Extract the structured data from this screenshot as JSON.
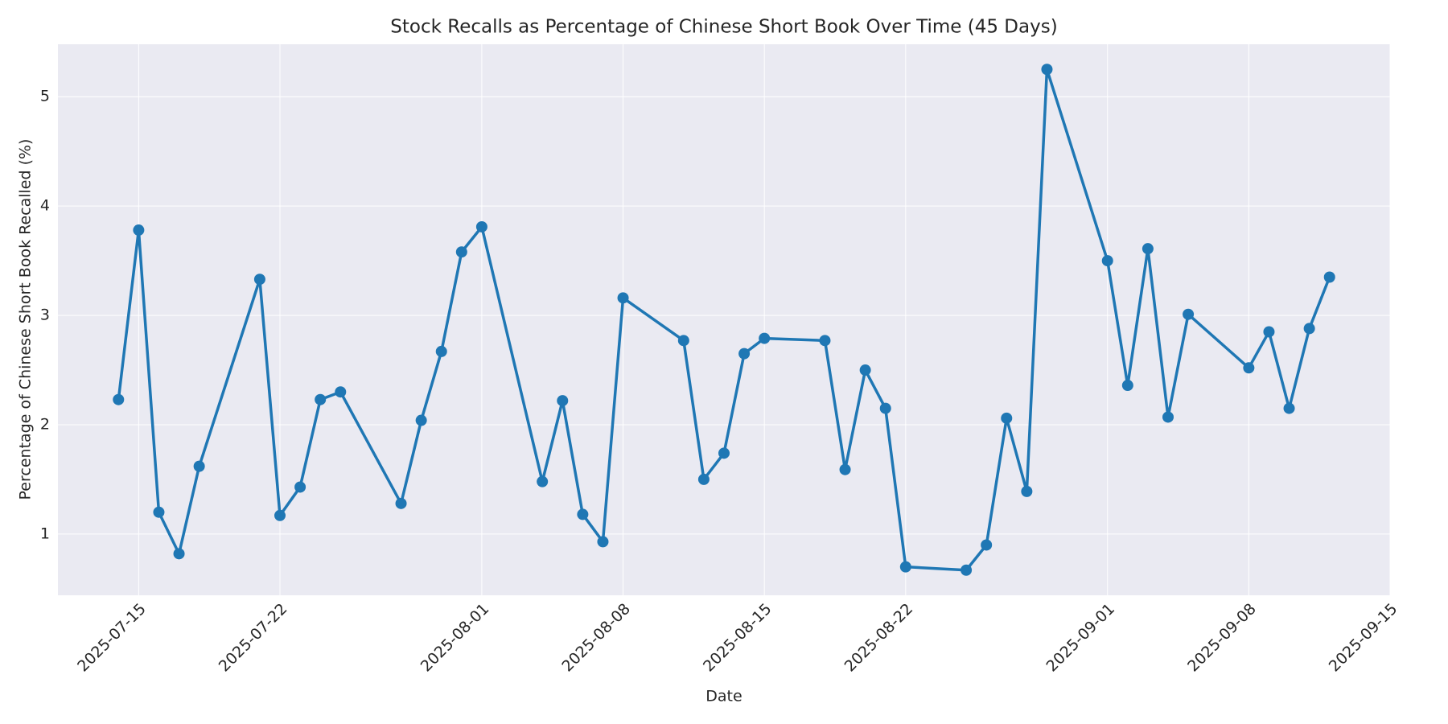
{
  "chart_data": {
    "type": "line",
    "title": "Stock Recalls as Percentage of Chinese Short Book Over Time (45 Days)",
    "x_label": "Date",
    "y_label": "Percentage of Chinese Short Book Recalled (%)",
    "x": [
      "2025-07-14",
      "2025-07-15",
      "2025-07-16",
      "2025-07-17",
      "2025-07-18",
      "2025-07-21",
      "2025-07-22",
      "2025-07-23",
      "2025-07-24",
      "2025-07-25",
      "2025-07-28",
      "2025-07-29",
      "2025-07-30",
      "2025-07-31",
      "2025-08-01",
      "2025-08-04",
      "2025-08-05",
      "2025-08-06",
      "2025-08-07",
      "2025-08-08",
      "2025-08-11",
      "2025-08-12",
      "2025-08-13",
      "2025-08-14",
      "2025-08-15",
      "2025-08-18",
      "2025-08-19",
      "2025-08-20",
      "2025-08-21",
      "2025-08-22",
      "2025-08-25",
      "2025-08-26",
      "2025-08-27",
      "2025-08-28",
      "2025-08-29",
      "2025-09-01",
      "2025-09-02",
      "2025-09-03",
      "2025-09-04",
      "2025-09-05",
      "2025-09-08",
      "2025-09-09",
      "2025-09-10",
      "2025-09-11",
      "2025-09-12"
    ],
    "values": [
      2.23,
      3.78,
      1.2,
      0.82,
      1.62,
      3.33,
      1.17,
      1.43,
      2.23,
      2.3,
      1.28,
      2.04,
      2.67,
      3.58,
      3.81,
      1.48,
      2.22,
      1.18,
      0.93,
      3.16,
      2.77,
      1.5,
      1.74,
      2.65,
      2.79,
      2.77,
      1.59,
      2.5,
      2.15,
      0.7,
      0.67,
      0.9,
      2.06,
      1.39,
      5.25,
      3.5,
      2.36,
      3.61,
      2.07,
      3.01,
      2.52,
      2.85,
      2.15,
      2.88,
      3.35
    ],
    "color": "#1f77b4",
    "xlim": [
      "2025-07-11",
      "2025-09-15"
    ],
    "xticks": [
      "2025-07-15",
      "2025-07-22",
      "2025-08-01",
      "2025-08-08",
      "2025-08-15",
      "2025-08-22",
      "2025-09-01",
      "2025-09-08",
      "2025-09-15"
    ],
    "ylim": [
      0.44,
      5.48
    ],
    "yticks": [
      1,
      2,
      3,
      4,
      5
    ],
    "grid": true
  }
}
